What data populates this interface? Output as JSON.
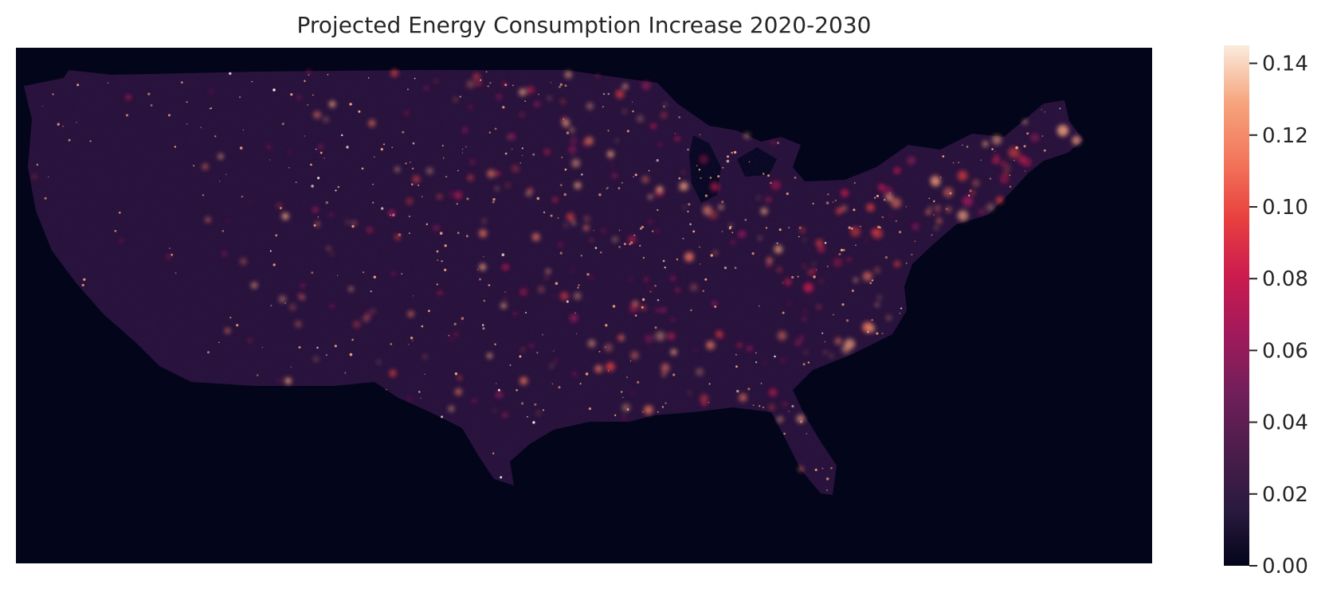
{
  "title": "Projected Energy Consumption Increase 2020-2030",
  "colorbar": {
    "ticks": [
      {
        "value": 0.0,
        "label": "0.00"
      },
      {
        "value": 0.02,
        "label": "0.02"
      },
      {
        "value": 0.04,
        "label": "0.04"
      },
      {
        "value": 0.06,
        "label": "0.06"
      },
      {
        "value": 0.08,
        "label": "0.08"
      },
      {
        "value": 0.1,
        "label": "0.10"
      },
      {
        "value": 0.12,
        "label": "0.12"
      },
      {
        "value": 0.14,
        "label": "0.14"
      }
    ],
    "range": [
      0,
      0.145
    ],
    "colormap": "rocket",
    "stops": [
      "#03051a",
      "#2b1a3f",
      "#4c1d4b",
      "#711f5a",
      "#a11a5b",
      "#cb1b4f",
      "#e83f3f",
      "#f3765b",
      "#f6a47c",
      "#faebdd"
    ]
  },
  "map": {
    "region": "Contiguous United States",
    "background_color": "#03051a",
    "land_base_color": "#2a1238",
    "hotspot_color": "#f6a47c",
    "peak_color": "#faebdd"
  }
}
